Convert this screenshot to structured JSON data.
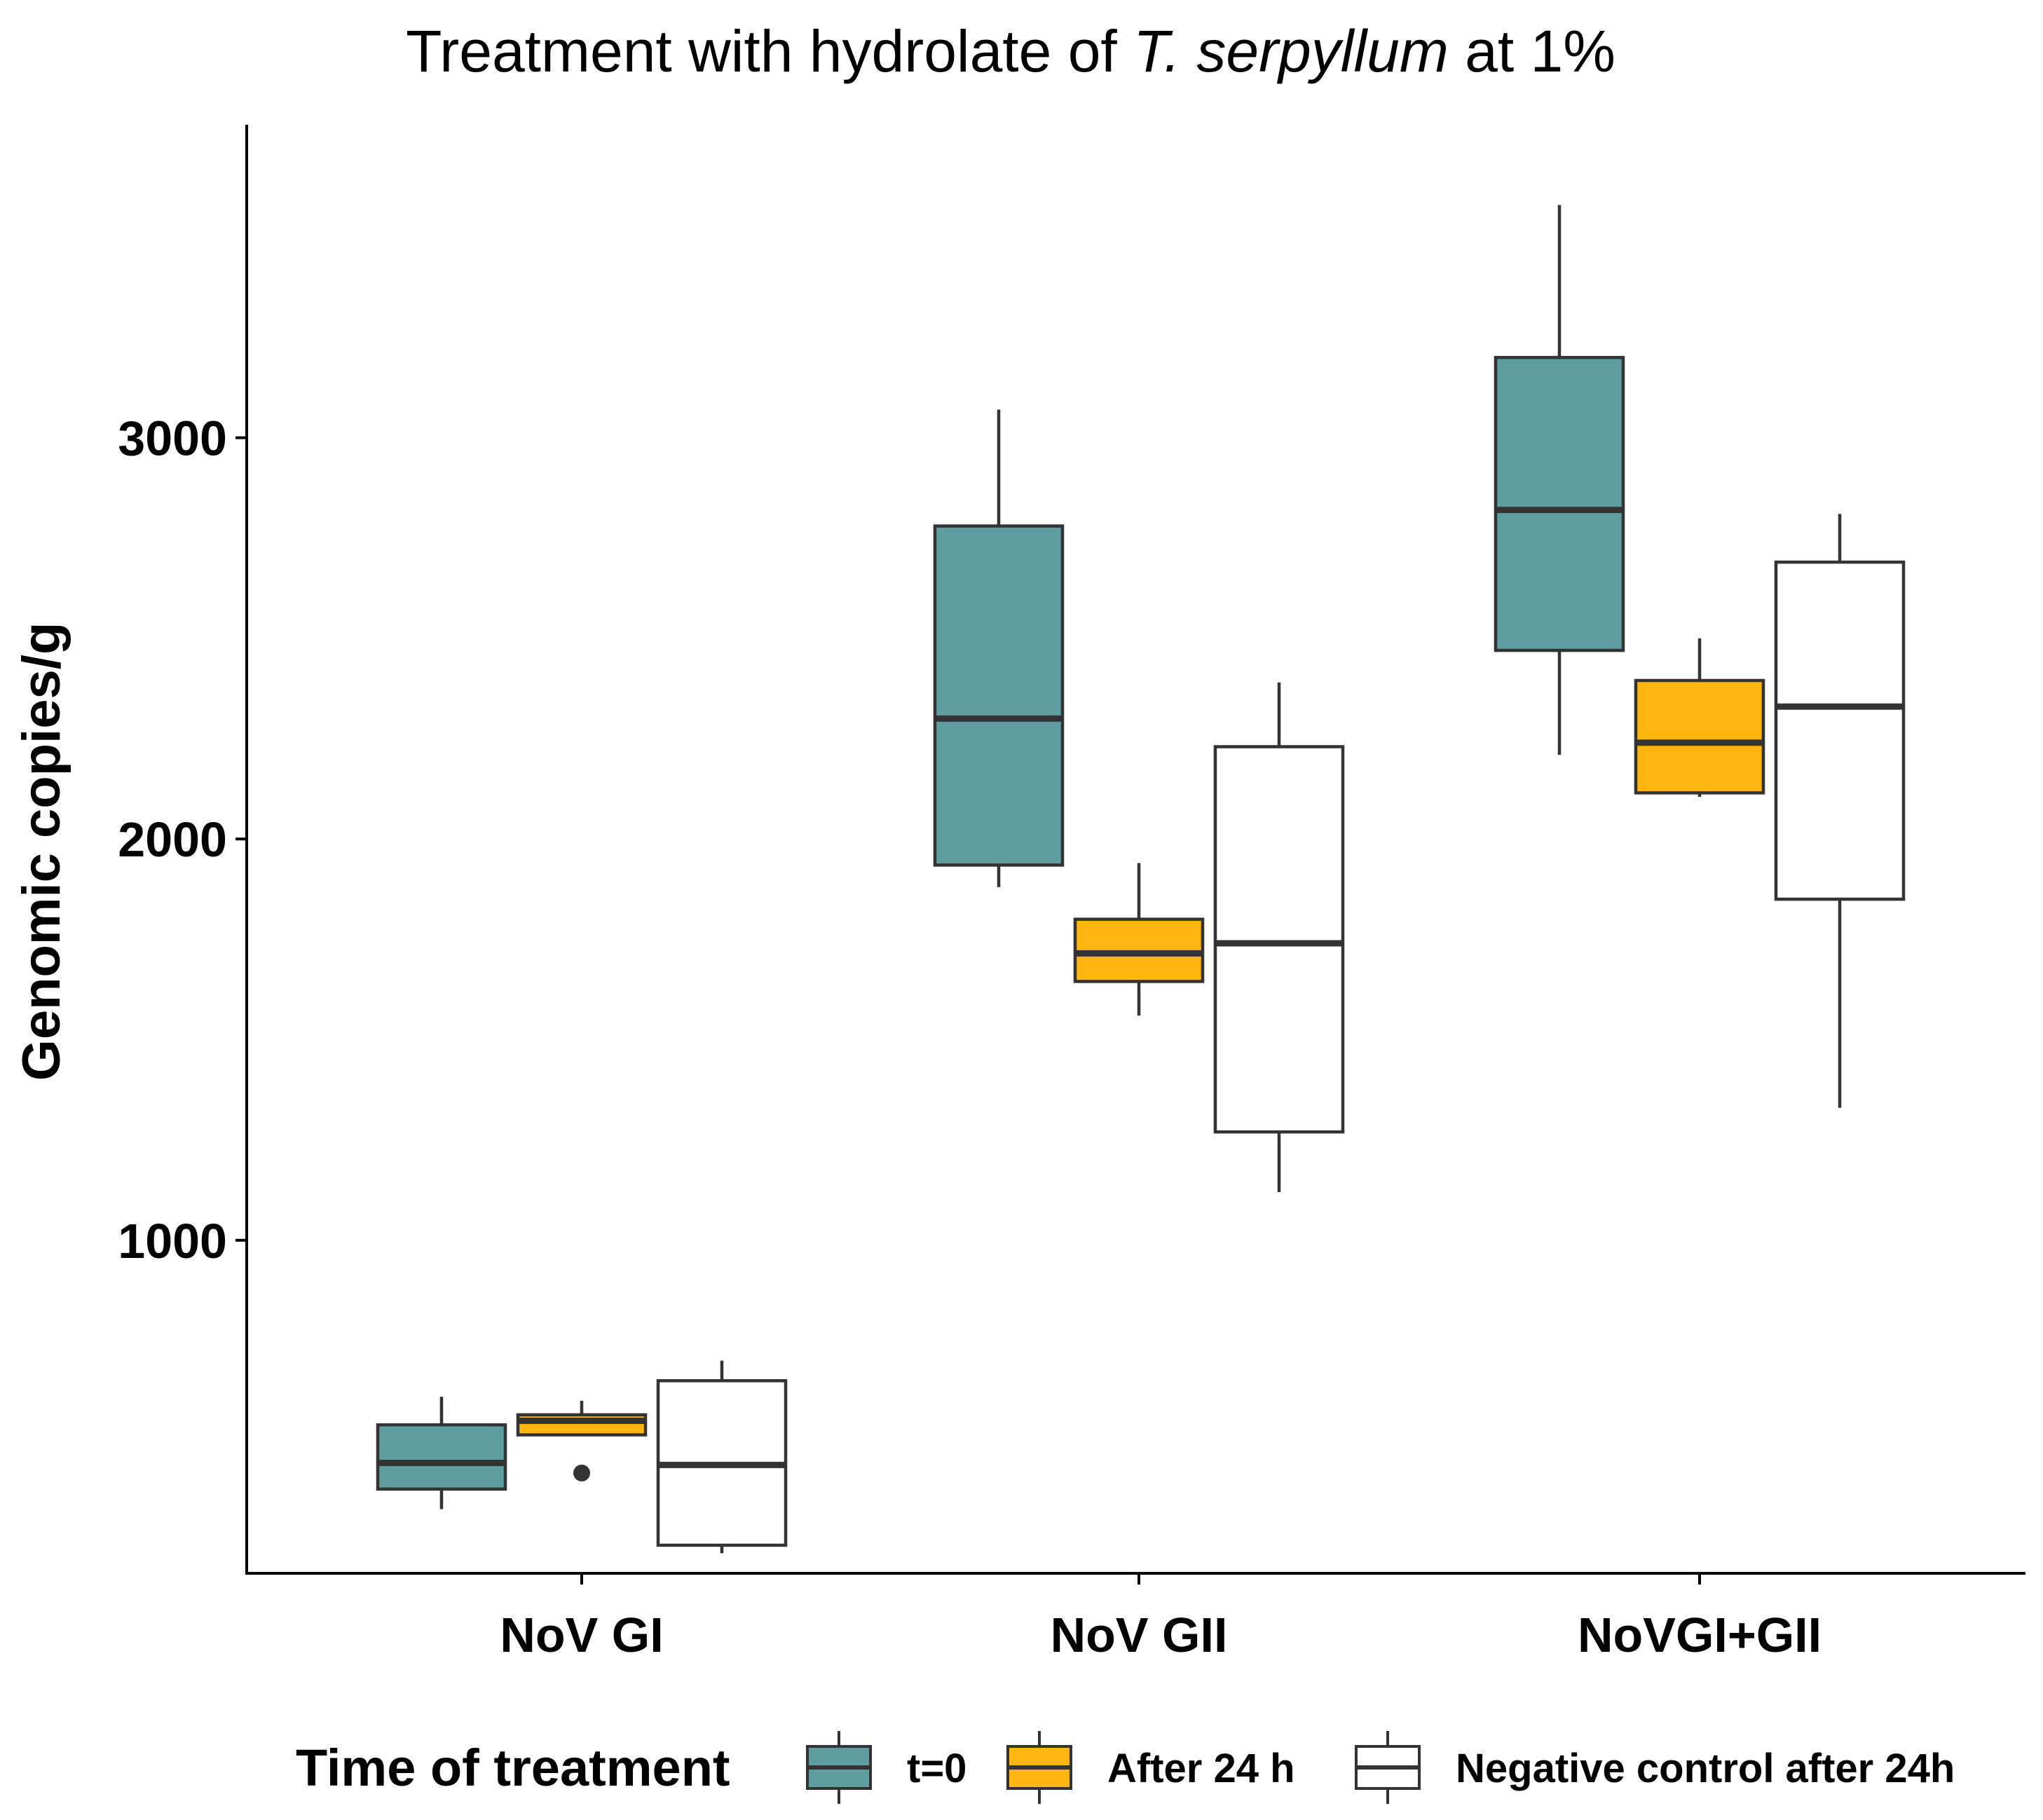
{
  "chart_data": {
    "type": "boxplot",
    "title": {
      "prefix": "Treatment with hydrolate of ",
      "italic": "T. serpyllum",
      "suffix": " at 1%"
    },
    "xlabel": "",
    "ylabel": "Genomic copies/g",
    "ylim": [
      170,
      3780
    ],
    "yticks": [
      1000,
      2000,
      3000
    ],
    "ytick_labels": [
      "1000",
      "2000",
      "3000"
    ],
    "categories": [
      "NoV GI",
      "NoV GII",
      "NoVGI+GII"
    ],
    "legend": {
      "title": "Time of treatment",
      "position": "bottom",
      "entries": [
        "t=0",
        "After 24 h",
        "Negative control after 24h"
      ]
    },
    "colors": {
      "t0": "#5f9ea0",
      "after24": "#ffb611",
      "control": "#ffffff",
      "stroke": "#333333"
    },
    "series": [
      {
        "name": "t=0",
        "color_key": "t0",
        "boxes": [
          {
            "category": "NoV GI",
            "lower_whisker": 330,
            "q1": 380,
            "median": 445,
            "q3": 540,
            "upper_whisker": 610,
            "outliers": []
          },
          {
            "category": "NoV GII",
            "lower_whisker": 1880,
            "q1": 1935,
            "median": 2300,
            "q3": 2780,
            "upper_whisker": 3070,
            "outliers": []
          },
          {
            "category": "NoVGI+GII",
            "lower_whisker": 2210,
            "q1": 2470,
            "median": 2820,
            "q3": 3200,
            "upper_whisker": 3580,
            "outliers": []
          }
        ]
      },
      {
        "name": "After 24 h",
        "color_key": "after24",
        "boxes": [
          {
            "category": "NoV GI",
            "lower_whisker": 515,
            "q1": 515,
            "median": 550,
            "q3": 565,
            "upper_whisker": 600,
            "outliers": [
              420
            ]
          },
          {
            "category": "NoV GII",
            "lower_whisker": 1560,
            "q1": 1645,
            "median": 1715,
            "q3": 1800,
            "upper_whisker": 1940,
            "outliers": []
          },
          {
            "category": "NoVGI+GII",
            "lower_whisker": 2105,
            "q1": 2115,
            "median": 2240,
            "q3": 2395,
            "upper_whisker": 2500,
            "outliers": []
          }
        ]
      },
      {
        "name": "Negative control after 24h",
        "color_key": "control",
        "boxes": [
          {
            "category": "NoV GI",
            "lower_whisker": 220,
            "q1": 240,
            "median": 440,
            "q3": 650,
            "upper_whisker": 700,
            "outliers": []
          },
          {
            "category": "NoV GII",
            "lower_whisker": 1120,
            "q1": 1270,
            "median": 1740,
            "q3": 2230,
            "upper_whisker": 2390,
            "outliers": []
          },
          {
            "category": "NoVGI+GII",
            "lower_whisker": 1330,
            "q1": 1850,
            "median": 2330,
            "q3": 2690,
            "upper_whisker": 2810,
            "outliers": []
          }
        ]
      }
    ]
  }
}
